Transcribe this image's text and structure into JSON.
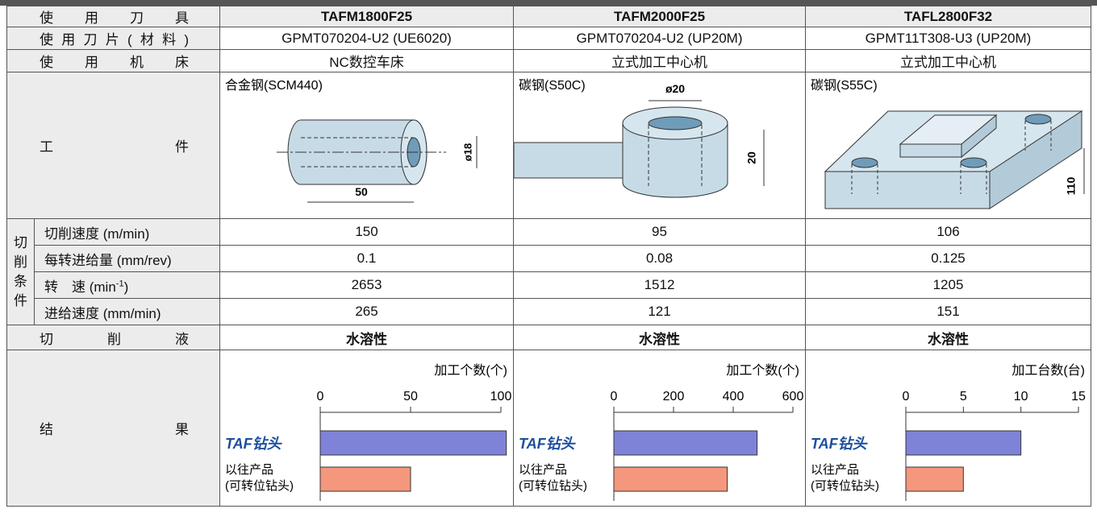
{
  "table": {
    "header": [
      "使用刀具",
      "TAFM1800F25",
      "TAFM2000F25",
      "TAFL2800F32"
    ],
    "rows": [
      {
        "label": "使用刀片(材料)",
        "cells": [
          "GPMT070204-U2 (UE6020)",
          "GPMT070204-U2 (UP20M)",
          "GPMT11T308-U3 (UP20M)"
        ]
      },
      {
        "label": "使用机床",
        "cells": [
          "NC数控车床",
          "立式加工中心机",
          "立式加工中心机"
        ]
      }
    ],
    "workpiece": {
      "label": "工件",
      "items": [
        {
          "material": "合金钢(SCM440)",
          "dims": [
            "ø18",
            "50"
          ]
        },
        {
          "material": "碳钢(S50C)",
          "dims": [
            "ø20",
            "20"
          ]
        },
        {
          "material": "碳钢(S55C)",
          "dims": [
            "110"
          ]
        }
      ]
    },
    "conditions": {
      "group": "切削条件",
      "rows": [
        {
          "label": "切削速度 (m/min)",
          "cells": [
            "150",
            "95",
            "106"
          ]
        },
        {
          "label": "每转进给量 (mm/rev)",
          "cells": [
            "0.1",
            "0.08",
            "0.125"
          ]
        },
        {
          "label": {
            "text": "转　速 (min",
            "sup": "-1",
            "end": ")"
          },
          "cells": [
            "2653",
            "1512",
            "1205"
          ]
        },
        {
          "label": "进给速度 (mm/min)",
          "cells": [
            "265",
            "121",
            "151"
          ]
        }
      ]
    },
    "coolant": {
      "label": "切削液",
      "cells": [
        "水溶性",
        "水溶性",
        "水溶性"
      ]
    }
  },
  "results": {
    "label": "结果",
    "series": [
      {
        "name": "TAF钻头",
        "color": "#7f83d8"
      },
      {
        "name": [
          "以往产品",
          "(可转位钻头)"
        ],
        "color": "#f4977d"
      }
    ],
    "charts": [
      {
        "type": "bar",
        "axis_title": "加工个数(个)",
        "xlim": [
          0,
          100
        ],
        "xticks": [
          0,
          50,
          100
        ],
        "values": [
          103,
          50
        ]
      },
      {
        "type": "bar",
        "axis_title": "加工个数(个)",
        "xlim": [
          0,
          600
        ],
        "xticks": [
          0,
          200,
          400,
          600
        ],
        "values": [
          480,
          380
        ]
      },
      {
        "type": "bar",
        "axis_title": "加工台数(台)",
        "xlim": [
          0,
          15
        ],
        "xticks": [
          0,
          5,
          10,
          15
        ],
        "values": [
          10,
          5
        ]
      }
    ]
  }
}
